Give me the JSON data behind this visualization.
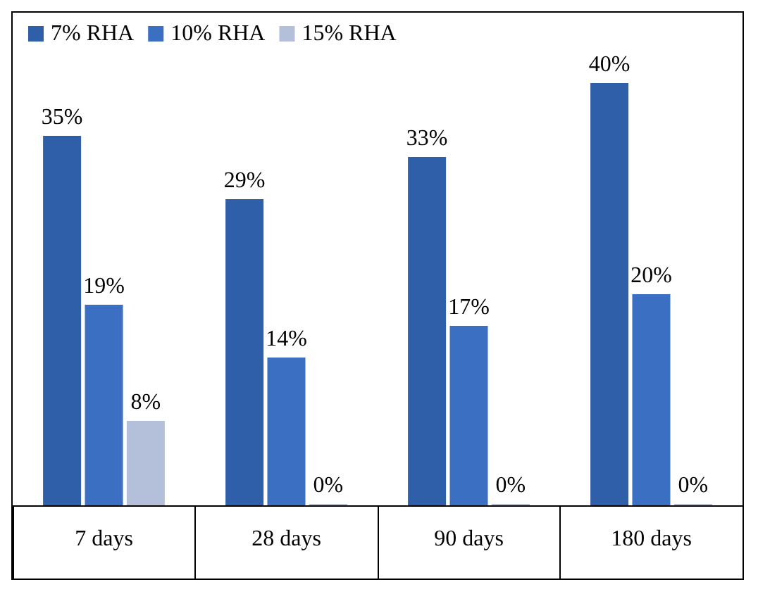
{
  "chart_data": {
    "type": "bar",
    "categories": [
      "7 days",
      "28 days",
      "90 days",
      "180 days"
    ],
    "series": [
      {
        "name": "7% RHA",
        "color": "#2f5fa9",
        "values": [
          35,
          29,
          33,
          40
        ],
        "value_labels": [
          "35%",
          "29%",
          "33%",
          "40%"
        ]
      },
      {
        "name": "10% RHA",
        "color": "#3a6fc2",
        "values": [
          19,
          14,
          17,
          20
        ],
        "value_labels": [
          "19%",
          "14%",
          "17%",
          "20%"
        ]
      },
      {
        "name": "15% RHA",
        "color": "#b4c0da",
        "values": [
          8,
          0,
          0,
          0
        ],
        "value_labels": [
          "8%",
          "0%",
          "0%",
          "0%"
        ]
      }
    ],
    "legend": "top left",
    "grid": false
  }
}
